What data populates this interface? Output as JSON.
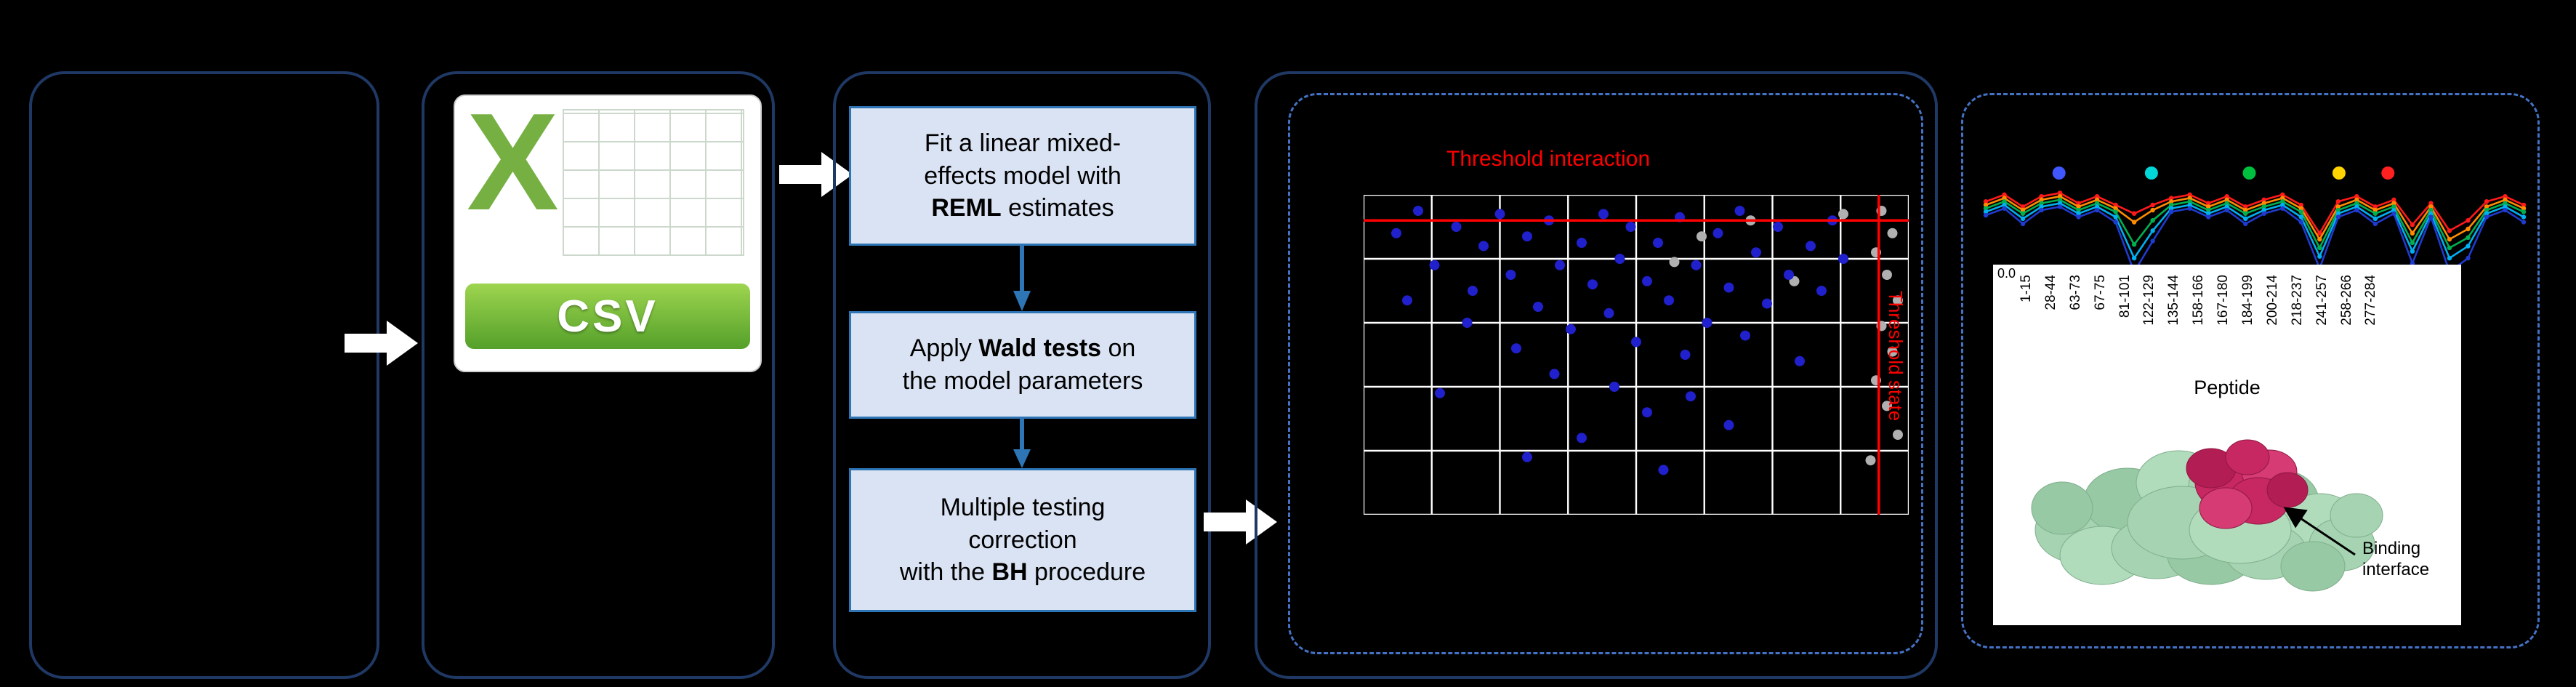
{
  "colors": {
    "panel_border": "#1f3864",
    "dashed_border": "#4472c4",
    "step_fill": "#dae3f3",
    "step_border": "#2e75b6",
    "csv_green": "#76b043",
    "threshold_red": "#ff0000"
  },
  "diagram": {
    "csv_icon": {
      "letter": "X",
      "label": "CSV"
    },
    "pipeline": {
      "steps": [
        {
          "segments": [
            {
              "t": "Fit a linear mixed-"
            },
            {
              "br": true
            },
            {
              "t": "effects model with"
            },
            {
              "br": true
            },
            {
              "t": "REML",
              "b": true
            },
            {
              "t": " estimates"
            }
          ]
        },
        {
          "segments": [
            {
              "t": "Apply "
            },
            {
              "t": "Wald tests",
              "b": true
            },
            {
              "t": " on"
            },
            {
              "br": true
            },
            {
              "t": "the model parameters"
            }
          ]
        },
        {
          "segments": [
            {
              "t": "Multiple testing"
            },
            {
              "br": true
            },
            {
              "t": "correction"
            },
            {
              "br": true
            },
            {
              "t": "with the "
            },
            {
              "t": "BH",
              "b": true
            },
            {
              "t": " procedure"
            }
          ]
        }
      ]
    },
    "threshold_plot": {
      "title": "Threshold interaction",
      "side_label": "Threshold state",
      "grid": {
        "cols": 8,
        "rows": 5
      },
      "h_threshold": 0.08,
      "v_threshold": 0.945,
      "colors": {
        "points_significant": "#2020cc",
        "points_nonsignificant": "#b0b0b0",
        "threshold_line": "#ff0000",
        "grid_line": "#ffffff"
      },
      "blue_points": [
        [
          0.06,
          0.12
        ],
        [
          0.1,
          0.05
        ],
        [
          0.13,
          0.22
        ],
        [
          0.17,
          0.1
        ],
        [
          0.2,
          0.3
        ],
        [
          0.22,
          0.16
        ],
        [
          0.25,
          0.06
        ],
        [
          0.27,
          0.25
        ],
        [
          0.3,
          0.13
        ],
        [
          0.32,
          0.35
        ],
        [
          0.34,
          0.08
        ],
        [
          0.36,
          0.22
        ],
        [
          0.38,
          0.42
        ],
        [
          0.4,
          0.15
        ],
        [
          0.42,
          0.28
        ],
        [
          0.44,
          0.06
        ],
        [
          0.45,
          0.37
        ],
        [
          0.47,
          0.2
        ],
        [
          0.49,
          0.1
        ],
        [
          0.5,
          0.46
        ],
        [
          0.52,
          0.27
        ],
        [
          0.54,
          0.15
        ],
        [
          0.56,
          0.33
        ],
        [
          0.58,
          0.07
        ],
        [
          0.59,
          0.5
        ],
        [
          0.61,
          0.22
        ],
        [
          0.63,
          0.4
        ],
        [
          0.65,
          0.12
        ],
        [
          0.67,
          0.29
        ],
        [
          0.69,
          0.05
        ],
        [
          0.7,
          0.44
        ],
        [
          0.72,
          0.18
        ],
        [
          0.74,
          0.34
        ],
        [
          0.76,
          0.1
        ],
        [
          0.78,
          0.25
        ],
        [
          0.8,
          0.52
        ],
        [
          0.82,
          0.16
        ],
        [
          0.84,
          0.3
        ],
        [
          0.86,
          0.08
        ],
        [
          0.88,
          0.2
        ],
        [
          0.46,
          0.6
        ],
        [
          0.52,
          0.68
        ],
        [
          0.35,
          0.56
        ],
        [
          0.28,
          0.48
        ],
        [
          0.19,
          0.4
        ],
        [
          0.6,
          0.63
        ],
        [
          0.67,
          0.72
        ],
        [
          0.14,
          0.62
        ],
        [
          0.4,
          0.76
        ],
        [
          0.55,
          0.86
        ],
        [
          0.3,
          0.82
        ],
        [
          0.08,
          0.33
        ]
      ],
      "gray_points": [
        [
          0.95,
          0.05
        ],
        [
          0.97,
          0.12
        ],
        [
          0.94,
          0.18
        ],
        [
          0.96,
          0.25
        ],
        [
          0.98,
          0.33
        ],
        [
          0.95,
          0.41
        ],
        [
          0.97,
          0.49
        ],
        [
          0.94,
          0.58
        ],
        [
          0.96,
          0.66
        ],
        [
          0.98,
          0.75
        ],
        [
          0.93,
          0.83
        ],
        [
          0.62,
          0.13
        ],
        [
          0.71,
          0.08
        ],
        [
          0.79,
          0.27
        ],
        [
          0.57,
          0.21
        ],
        [
          0.88,
          0.06
        ]
      ]
    },
    "profile_panel": {
      "y_tick": "0.0",
      "axis_label": "Peptide",
      "peptide_labels": [
        "1-15",
        "28-44",
        "63-73",
        "67-75",
        "81-101",
        "122-129",
        "135-144",
        "158-166",
        "167-180",
        "184-199",
        "200-214",
        "218-237",
        "241-257",
        "258-266",
        "277-284"
      ],
      "legend_dots": [
        {
          "color": "#4056ff",
          "x": 0.14
        },
        {
          "color": "#00d8d8",
          "x": 0.31
        },
        {
          "color": "#00c040",
          "x": 0.49
        },
        {
          "color": "#ffd400",
          "x": 0.655
        },
        {
          "color": "#ff2020",
          "x": 0.745
        }
      ],
      "series": [
        {
          "name": "series-red",
          "color": "#ff1a1a",
          "values": [
            0.18,
            0.1,
            0.24,
            0.12,
            0.08,
            0.2,
            0.12,
            0.22,
            0.32,
            0.22,
            0.14,
            0.1,
            0.2,
            0.12,
            0.24,
            0.16,
            0.1,
            0.22,
            0.55,
            0.18,
            0.12,
            0.24,
            0.16,
            0.45,
            0.2,
            0.52,
            0.4,
            0.18,
            0.12,
            0.22
          ]
        },
        {
          "name": "series-orange",
          "color": "#ff8c00",
          "values": [
            0.22,
            0.14,
            0.28,
            0.16,
            0.12,
            0.24,
            0.16,
            0.26,
            0.42,
            0.28,
            0.18,
            0.14,
            0.24,
            0.16,
            0.28,
            0.2,
            0.14,
            0.26,
            0.62,
            0.24,
            0.16,
            0.28,
            0.2,
            0.55,
            0.24,
            0.62,
            0.5,
            0.24,
            0.16,
            0.26
          ]
        },
        {
          "name": "series-green",
          "color": "#00b050",
          "values": [
            0.26,
            0.18,
            0.32,
            0.2,
            0.16,
            0.28,
            0.2,
            0.3,
            0.68,
            0.4,
            0.22,
            0.18,
            0.28,
            0.2,
            0.32,
            0.24,
            0.18,
            0.3,
            0.72,
            0.28,
            0.2,
            0.32,
            0.24,
            0.66,
            0.28,
            0.72,
            0.6,
            0.28,
            0.2,
            0.3
          ]
        },
        {
          "name": "series-cyan",
          "color": "#00b0f0",
          "values": [
            0.3,
            0.22,
            0.38,
            0.24,
            0.2,
            0.32,
            0.24,
            0.36,
            0.84,
            0.52,
            0.26,
            0.22,
            0.32,
            0.24,
            0.38,
            0.28,
            0.22,
            0.36,
            0.82,
            0.32,
            0.24,
            0.38,
            0.28,
            0.76,
            0.32,
            0.84,
            0.7,
            0.32,
            0.24,
            0.36
          ]
        },
        {
          "name": "series-navy",
          "color": "#1f3bcf",
          "values": [
            0.34,
            0.26,
            0.44,
            0.28,
            0.24,
            0.36,
            0.28,
            0.42,
            1.0,
            0.64,
            0.3,
            0.26,
            0.36,
            0.28,
            0.44,
            0.32,
            0.26,
            0.42,
            0.96,
            0.36,
            0.28,
            0.44,
            0.32,
            0.9,
            0.36,
            1.0,
            0.84,
            0.36,
            0.28,
            0.42
          ]
        }
      ],
      "protein_caption": {
        "line1": "Binding",
        "line2": "interface"
      }
    }
  }
}
